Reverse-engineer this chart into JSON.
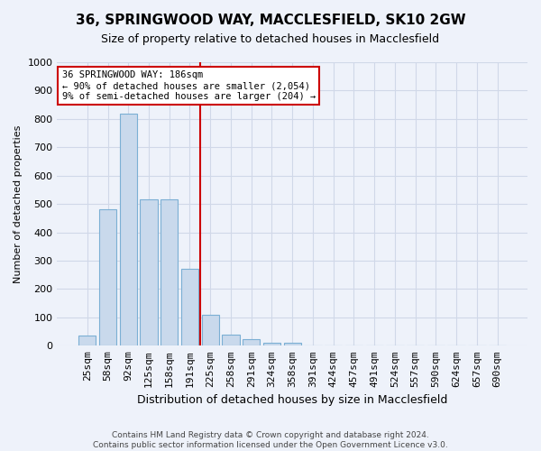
{
  "title": "36, SPRINGWOOD WAY, MACCLESFIELD, SK10 2GW",
  "subtitle": "Size of property relative to detached houses in Macclesfield",
  "xlabel": "Distribution of detached houses by size in Macclesfield",
  "ylabel": "Number of detached properties",
  "bar_labels": [
    "25sqm",
    "58sqm",
    "92sqm",
    "125sqm",
    "158sqm",
    "191sqm",
    "225sqm",
    "258sqm",
    "291sqm",
    "324sqm",
    "358sqm",
    "391sqm",
    "424sqm",
    "457sqm",
    "491sqm",
    "524sqm",
    "557sqm",
    "590sqm",
    "624sqm",
    "657sqm",
    "690sqm"
  ],
  "bar_values": [
    35,
    480,
    820,
    515,
    515,
    270,
    110,
    40,
    22,
    12,
    10,
    0,
    0,
    0,
    0,
    0,
    0,
    0,
    0,
    0,
    0
  ],
  "bar_color": "#c9d9ec",
  "bar_edge_color": "#7bafd4",
  "grid_color": "#d0d8e8",
  "background_color": "#eef2fa",
  "vline_x": 5,
  "annotation_text_line1": "36 SPRINGWOOD WAY: 186sqm",
  "annotation_text_line2": "← 90% of detached houses are smaller (2,054)",
  "annotation_text_line3": "9% of semi-detached houses are larger (204) →",
  "annotation_box_color": "#ffffff",
  "annotation_box_edge_color": "#cc0000",
  "vline_color": "#cc0000",
  "ylim": [
    0,
    1000
  ],
  "yticks": [
    0,
    100,
    200,
    300,
    400,
    500,
    600,
    700,
    800,
    900,
    1000
  ],
  "footnote1": "Contains HM Land Registry data © Crown copyright and database right 2024.",
  "footnote2": "Contains public sector information licensed under the Open Government Licence v3.0."
}
